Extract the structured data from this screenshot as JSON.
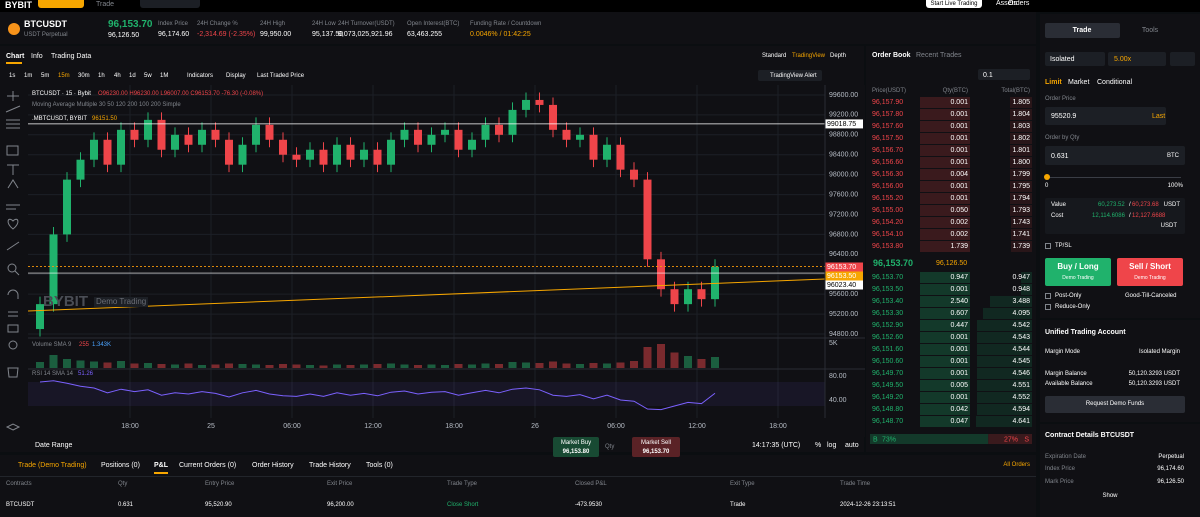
{
  "header": {
    "logo": "BYBIT",
    "nav_trade": "Trade",
    "live_button": "Start Live Trading",
    "assets": "Assets",
    "orders": "Orders"
  },
  "ticker": {
    "symbol": "BTCUSDT",
    "contract": "USDT Perpetual",
    "last_price": "96,153.70",
    "mark_price": "96,126.50",
    "stats": [
      {
        "label": "Index Price",
        "value": "96,174.60"
      },
      {
        "label": "24H Change %",
        "value": "-2,314.69 (-2.35%)"
      },
      {
        "label": "24H High",
        "value": "99,950.00"
      },
      {
        "label": "24H Low",
        "value": "95,137.50"
      },
      {
        "label": "24H Turnover(USDT)",
        "value": "9,073,025,921.96"
      },
      {
        "label": "Open Interest(BTC)",
        "value": "63,463.255"
      },
      {
        "label": "Funding Rate / Countdown",
        "value": "0.0046% / 01:42:25"
      }
    ]
  },
  "chart_tabs": [
    "Chart",
    "Info",
    "Trading Data"
  ],
  "view_tabs": [
    "Standard",
    "TradingView",
    "Depth"
  ],
  "intervals": [
    "1s",
    "1m",
    "5m",
    "15m",
    "30m",
    "1h",
    "4h",
    "1d",
    "5w",
    "1M"
  ],
  "toolbar": [
    "Indicators",
    "Display",
    "Last Traded Price"
  ],
  "alert_button": "TradingView Alert",
  "chart_data": {
    "type": "candlestick",
    "legend": {
      "symbol": "BTCUSDT · 15 · Bybit",
      "ohlc": "O96230.00 H96230.00 L96007.00 C96153.70 -76.30 (-0.08%)",
      "ma": "Moving Average Multiple 30 50 120 200 100 200 Simple",
      "index": ".MBTCUSDT, BYBIT",
      "index_value": "96151.50"
    },
    "watermark": "BYBIT",
    "watermark_sub": "Demo Trading",
    "open": [
      94900,
      95400,
      96800,
      97900,
      98300,
      98700,
      98200,
      98900,
      98700,
      99100,
      98500,
      98800,
      98600,
      98900,
      98700,
      98200,
      98600,
      99000,
      98700,
      98400,
      98300,
      98500,
      98200,
      98600,
      98300,
      98500,
      98200,
      98700,
      98900,
      98600,
      98800,
      98900,
      98500,
      98700,
      99000,
      98800,
      99300,
      99500,
      99400,
      98900,
      98700,
      98800,
      98300,
      98600,
      98100,
      97900,
      96300,
      95700,
      95400,
      95700,
      95500
    ],
    "high": [
      95550,
      96950,
      98050,
      98450,
      98850,
      98850,
      99050,
      99050,
      99250,
      99250,
      98950,
      98950,
      99050,
      99050,
      98850,
      98750,
      99150,
      99150,
      98850,
      98550,
      98650,
      98650,
      98750,
      98750,
      98650,
      98650,
      98850,
      99050,
      99050,
      98950,
      99050,
      99050,
      98850,
      99150,
      99150,
      99450,
      99650,
      99650,
      99550,
      99050,
      98950,
      98950,
      98750,
      98750,
      98250,
      98050,
      96450,
      95850,
      95850,
      95850,
      96300
    ],
    "low": [
      94750,
      95250,
      96650,
      97750,
      98150,
      98050,
      98050,
      98550,
      98550,
      98350,
      98350,
      98450,
      98450,
      98550,
      98050,
      98050,
      98450,
      98550,
      98250,
      98150,
      98150,
      98050,
      98050,
      98150,
      98150,
      98050,
      98050,
      98550,
      98450,
      98450,
      98650,
      98350,
      98350,
      98550,
      98650,
      98650,
      99150,
      99250,
      98750,
      98550,
      98550,
      98150,
      98150,
      97950,
      97750,
      96150,
      95550,
      95250,
      95250,
      95350,
      95350
    ],
    "close": [
      95400,
      96800,
      97900,
      98300,
      98700,
      98200,
      98900,
      98700,
      99100,
      98500,
      98800,
      98600,
      98900,
      98700,
      98200,
      98600,
      99000,
      98700,
      98400,
      98300,
      98500,
      98200,
      98600,
      98300,
      98500,
      98200,
      98700,
      98900,
      98600,
      98800,
      98900,
      98500,
      98700,
      99000,
      98800,
      99300,
      99500,
      99400,
      98900,
      98700,
      98800,
      98300,
      98600,
      98100,
      97900,
      96300,
      95700,
      95400,
      95700,
      95500,
      96150
    ],
    "up_color": "#20b26c",
    "down_color": "#ef454a",
    "ylim": [
      94720,
      99800
    ],
    "yticks": [
      {
        "value": 99600,
        "label": "99600.00"
      },
      {
        "value": 99200,
        "label": "99200.00"
      },
      {
        "value": 98800,
        "label": "98800.00"
      },
      {
        "value": 98400,
        "label": "98400.00"
      },
      {
        "value": 98000,
        "label": "98000.00"
      },
      {
        "value": 97600,
        "label": "97600.00"
      },
      {
        "value": 97200,
        "label": "97200.00"
      },
      {
        "value": 96800,
        "label": "96800.00"
      },
      {
        "value": 96400,
        "label": "96400.00"
      },
      {
        "value": 96000,
        "label": "96000.00"
      },
      {
        "value": 95600,
        "label": "95600.00"
      },
      {
        "value": 95200,
        "label": "95200.00"
      },
      {
        "value": 94800,
        "label": "94800.00"
      }
    ],
    "grid": true,
    "price_lines": [
      {
        "value": 99018.75,
        "label": "99018.75",
        "color": "#ffffff"
      },
      {
        "value": 96153.7,
        "label": "96153.70",
        "color": "#ef454a"
      },
      {
        "value": 96153.5,
        "label": "96153.50",
        "color": "#f7a600"
      },
      {
        "value": 96023.4,
        "label": "96023.40",
        "color": "#ffffff"
      }
    ],
    "xtick_labels": [
      "18:00",
      "25",
      "06:00",
      "12:00",
      "18:00",
      "26",
      "06:00",
      "12:00",
      "18:00"
    ],
    "volume": {
      "title": "Volume SMA 9",
      "last": "255",
      "sma": "1.343K",
      "values": [
        1200,
        2600,
        1800,
        1500,
        1300,
        1100,
        1400,
        900,
        1000,
        800,
        700,
        900,
        600,
        700,
        900,
        800,
        700,
        600,
        800,
        700,
        600,
        500,
        700,
        600,
        700,
        800,
        900,
        700,
        600,
        700,
        600,
        800,
        700,
        900,
        800,
        1200,
        1100,
        1000,
        1300,
        900,
        800,
        1000,
        900,
        1100,
        1400,
        4200,
        4800,
        3100,
        2400,
        1800,
        2200
      ],
      "ylim": [
        0,
        5600
      ],
      "yticks": [
        {
          "value": 5000,
          "label": "5K"
        }
      ]
    },
    "rsi": {
      "title": "RSI 14 SMA 14",
      "color": "#7b61ff",
      "values": [
        70,
        72,
        68,
        63,
        60,
        52,
        58,
        54,
        57,
        48,
        52,
        50,
        54,
        51,
        45,
        52,
        56,
        50,
        47,
        46,
        50,
        46,
        52,
        48,
        51,
        47,
        53,
        55,
        50,
        53,
        54,
        48,
        52,
        56,
        52,
        58,
        60,
        57,
        48,
        46,
        49,
        42,
        48,
        40,
        38,
        25,
        24,
        30,
        36,
        34,
        51.26
      ],
      "ylim": [
        10,
        90
      ],
      "yticks": [
        {
          "value": 80,
          "label": "80.00"
        },
        {
          "value": 40,
          "label": "40.00"
        }
      ]
    }
  },
  "chart_footer": {
    "date_range": "Date Range",
    "market_buy": "Market Buy",
    "buy_price": "96,153.80",
    "qty": "Qty",
    "market_sell": "Market Sell",
    "sell_price": "96,153.70",
    "time": "14:17:35 (UTC)",
    "options": [
      "%",
      "log",
      "auto"
    ]
  },
  "order_book": {
    "tabs": [
      "Order Book",
      "Recent Trades"
    ],
    "step": "0.1",
    "headers": [
      "Price(USDT)",
      "Qty(BTC)",
      "Total(BTC)"
    ],
    "asks": [
      [
        "96,157.90",
        "0.001",
        "1.805"
      ],
      [
        "96,157.80",
        "0.001",
        "1.804"
      ],
      [
        "96,157.60",
        "0.001",
        "1.803"
      ],
      [
        "96,157.50",
        "0.001",
        "1.802"
      ],
      [
        "96,156.70",
        "0.001",
        "1.801"
      ],
      [
        "96,156.60",
        "0.001",
        "1.800"
      ],
      [
        "96,156.30",
        "0.004",
        "1.799"
      ],
      [
        "96,156.00",
        "0.001",
        "1.795"
      ],
      [
        "96,155.20",
        "0.001",
        "1.794"
      ],
      [
        "96,155.00",
        "0.050",
        "1.793"
      ],
      [
        "96,154.20",
        "0.002",
        "1.743"
      ],
      [
        "96,154.10",
        "0.002",
        "1.741"
      ],
      [
        "96,153.80",
        "1.739",
        "1.739"
      ]
    ],
    "asks_total": [
      1.805,
      1.804,
      1.803,
      1.802,
      1.801,
      1.8,
      1.799,
      1.795,
      1.794,
      1.793,
      1.743,
      1.741,
      1.739
    ],
    "last": "96,153.70",
    "mark": "96,126.50",
    "bids": [
      [
        "96,153.70",
        "0.947",
        "0.947"
      ],
      [
        "96,153.50",
        "0.001",
        "0.948"
      ],
      [
        "96,153.40",
        "2.540",
        "3.488"
      ],
      [
        "96,153.30",
        "0.607",
        "4.095"
      ],
      [
        "96,152.90",
        "0.447",
        "4.542"
      ],
      [
        "96,152.60",
        "0.001",
        "4.543"
      ],
      [
        "96,151.60",
        "0.001",
        "4.544"
      ],
      [
        "96,150.60",
        "0.001",
        "4.545"
      ],
      [
        "96,149.70",
        "0.001",
        "4.546"
      ],
      [
        "96,149.50",
        "0.005",
        "4.551"
      ],
      [
        "96,149.20",
        "0.001",
        "4.552"
      ],
      [
        "96,148.80",
        "0.042",
        "4.594"
      ],
      [
        "96,148.70",
        "0.047",
        "4.641"
      ]
    ],
    "bids_total": [
      0.947,
      0.948,
      3.488,
      4.095,
      4.542,
      4.543,
      4.544,
      4.545,
      4.546,
      4.551,
      4.552,
      4.594,
      4.641
    ],
    "depth_max": 4.641,
    "buy_letter": "B",
    "sell_letter": "S",
    "buy_ratio": {
      "value": 73,
      "label": "73%"
    },
    "sell_ratio": {
      "value": 27,
      "label": "27%"
    }
  },
  "trade_panel": {
    "tabs": [
      "Trade",
      "Tools"
    ],
    "margin": "Isolated",
    "leverage": "5.00x",
    "order_types": [
      "Limit",
      "Market",
      "Conditional"
    ],
    "order_price_label": "Order Price",
    "order_price": "95520.9",
    "last": "Last",
    "qty_label": "Order by Qty",
    "qty": "0.631",
    "qty_unit": "BTC",
    "slider_min": "0",
    "slider_max": "100%",
    "value_label": "Value",
    "value_buy": "60,273.52",
    "value_sep": "/",
    "value_sell": "60,273.68",
    "value_unit": "USDT",
    "cost_label": "Cost",
    "cost_buy": "12,114.6086",
    "cost_sep": "/",
    "cost_sell": "12,127.6688",
    "cost_unit": "USDT",
    "tpsl": "TP/SL",
    "buy_button": "Buy / Long",
    "sell_button": "Sell / Short",
    "demo": "Demo Trading",
    "post_only": "Post-Only",
    "tif": "Good-Till-Canceled",
    "reduce_only": "Reduce-Only",
    "account_title": "Unified Trading Account",
    "margin_mode_label": "Margin Mode",
    "margin_mode": "Isolated Margin",
    "margin_balance_label": "Margin Balance",
    "margin_balance": "50,120.3293 USDT",
    "available_label": "Available Balance",
    "available": "50,120.3293 USDT",
    "request_funds": "Request Demo Funds",
    "contract_title": "Contract Details BTCUSDT",
    "expiration_label": "Expiration Date",
    "expiration": "Perpetual",
    "index_label": "Index Price",
    "index": "96,174.60",
    "mark_label": "Mark Price",
    "mark": "96,126.50",
    "show": "Show"
  },
  "positions": {
    "tabs": [
      "Trade (Demo Trading)",
      "Positions (0)",
      "P&L",
      "Current Orders (0)",
      "Order History",
      "Trade History",
      "Tools (0)"
    ],
    "all_orders": "All Orders",
    "headers": [
      "Contracts",
      "Qty",
      "Entry Price",
      "Exit Price",
      "Trade Type",
      "Closed P&L",
      "Exit Type",
      "Trade Time"
    ],
    "rows": [
      [
        "BTCUSDT",
        "0.631",
        "95,520.90",
        "96,200.00",
        "Close Short",
        "-473.9530",
        "Trade",
        "2024-12-26 23:13:51"
      ]
    ]
  }
}
